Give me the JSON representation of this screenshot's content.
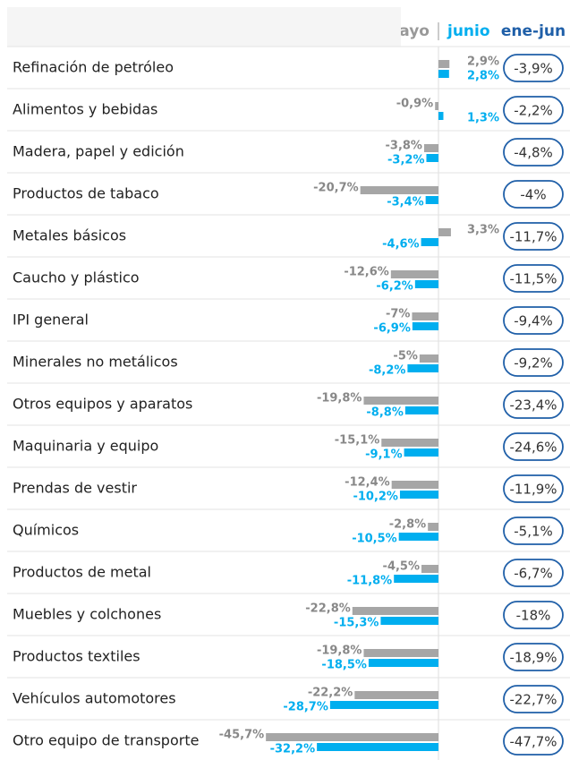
{
  "chart_data": {
    "type": "bar",
    "orientation": "horizontal",
    "categories": [
      "Refinación de petróleo",
      "Alimentos y bebidas",
      "Madera, papel y edición",
      "Productos de tabaco",
      "Metales básicos",
      "Caucho y plástico",
      "IPI general",
      "Minerales no metálicos",
      "Otros equipos y aparatos",
      "Maquinaria y equipo",
      "Prendas de vestir",
      "Químicos",
      "Productos de metal",
      "Muebles y colchones",
      "Productos textiles",
      "Vehículos automotores",
      "Otro equipo de transporte"
    ],
    "series": [
      {
        "name": "mayo",
        "color": "#a6a6a6",
        "values": [
          2.9,
          -0.9,
          -3.8,
          -20.7,
          3.3,
          -12.6,
          -7,
          -5,
          -19.8,
          -15.1,
          -12.4,
          -2.8,
          -4.5,
          -22.8,
          -19.8,
          -22.2,
          -45.7
        ],
        "value_labels": [
          "2,9%",
          "-0,9%",
          "-3,8%",
          "-20,7%",
          "3,3%",
          "-12,6%",
          "-7%",
          "-5%",
          "-19,8%",
          "-15,1%",
          "-12,4%",
          "-2,8%",
          "-4,5%",
          "-22,8%",
          "-19,8%",
          "-22,2%",
          "-45,7%"
        ]
      },
      {
        "name": "junio",
        "color": "#00aeef",
        "values": [
          2.8,
          1.3,
          -3.2,
          -3.4,
          -4.6,
          -6.2,
          -6.9,
          -8.2,
          -8.8,
          -9.1,
          -10.2,
          -10.5,
          -11.8,
          -15.3,
          -18.5,
          -28.7,
          -32.2
        ],
        "value_labels": [
          "2,8%",
          "1,3%",
          "-3,2%",
          "-3,4%",
          "-4,6%",
          "-6,2%",
          "-6,9%",
          "-8,2%",
          "-8,8%",
          "-9,1%",
          "-10,2%",
          "-10,5%",
          "-11,8%",
          "-15,3%",
          "-18,5%",
          "-28,7%",
          "-32,2%"
        ]
      },
      {
        "name": "ene-jun",
        "color": "#1f5fa8",
        "values": [
          -3.9,
          -2.2,
          -4.8,
          -4,
          -11.7,
          -11.5,
          -9.4,
          -9.2,
          -23.4,
          -24.6,
          -11.9,
          -5.1,
          -6.7,
          -18,
          -18.9,
          -22.7,
          -47.7
        ],
        "value_labels": [
          "-3,9%",
          "-2,2%",
          "-4,8%",
          "-4%",
          "-11,7%",
          "-11,5%",
          "-9,4%",
          "-9,2%",
          "-23,4%",
          "-24,6%",
          "-11,9%",
          "-5,1%",
          "-6,7%",
          "-18%",
          "-18,9%",
          "-22,7%",
          "-47,7%"
        ]
      }
    ]
  }
}
